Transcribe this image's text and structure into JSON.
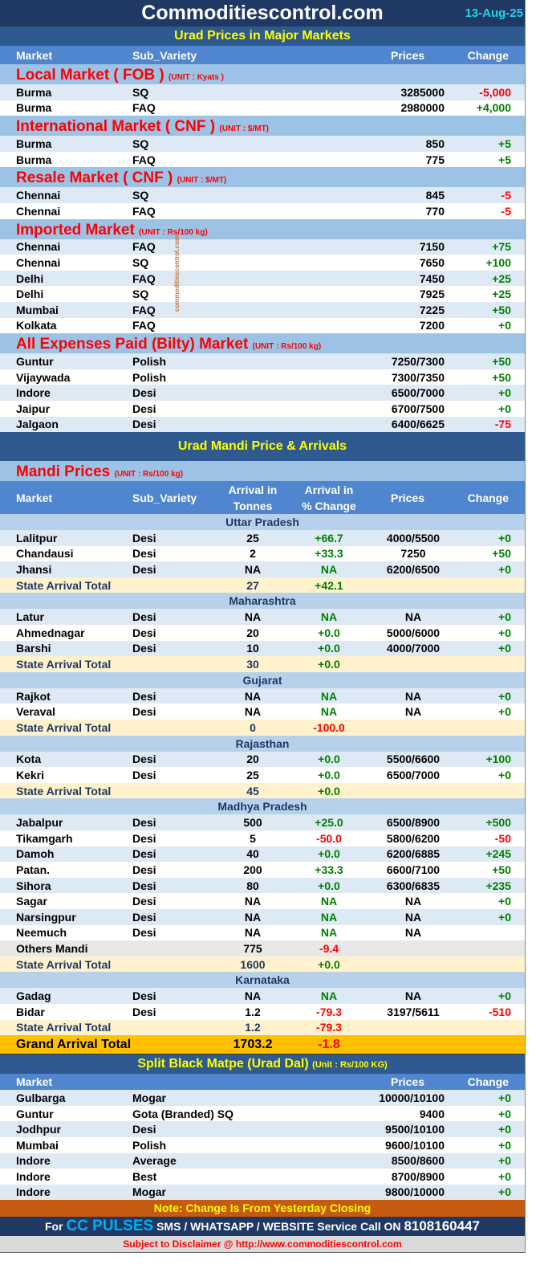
{
  "header": {
    "title": "Commoditiescontrol.com",
    "date": "13-Aug-25",
    "subtitle": "Urad Prices in Major Markets"
  },
  "columns": {
    "market": "Market",
    "sub_variety": "Sub_Variety",
    "prices": "Prices",
    "change": "Change",
    "arrival_tonnes_1": "Arrival in",
    "arrival_tonnes_2": "Tonnes",
    "arrival_pct_1": "Arrival  in",
    "arrival_pct_2": "% Change"
  },
  "watermark": "commoditiescontrol.com",
  "major_sections": [
    {
      "title": "Local Market ( FOB )",
      "unit": "(UNIT : Kyats )",
      "rows": [
        [
          "Burma",
          "SQ",
          "3285000",
          "-5,000"
        ],
        [
          "Burma",
          "FAQ",
          "2980000",
          "+4,000"
        ]
      ]
    },
    {
      "title": "International Market ( CNF )",
      "unit": "(UNIT : $/MT)",
      "rows": [
        [
          "Burma",
          "SQ",
          "850",
          "+5"
        ],
        [
          "Burma",
          "FAQ",
          "775",
          "+5"
        ]
      ]
    },
    {
      "title": "Resale Market  ( CNF )",
      "unit": "(UNIT : $/MT)",
      "rows": [
        [
          "Chennai",
          "SQ",
          "845",
          "-5"
        ],
        [
          "Chennai",
          "FAQ",
          "770",
          "-5"
        ]
      ]
    },
    {
      "title": "Imported Market",
      "unit": "(UNIT : Rs/100 kg)",
      "rows": [
        [
          "Chennai",
          "FAQ",
          "7150",
          "+75"
        ],
        [
          "Chennai",
          "SQ",
          "7650",
          "+100"
        ],
        [
          "Delhi",
          "FAQ",
          "7450",
          "+25"
        ],
        [
          "Delhi",
          "SQ",
          "7925",
          "+25"
        ],
        [
          "Mumbai",
          "FAQ",
          "7225",
          "+50"
        ],
        [
          "Kolkata",
          "FAQ",
          "7200",
          "+0"
        ]
      ]
    },
    {
      "title": "All Expenses Paid (Bilty) Market",
      "unit": "(UNIT : Rs/100 kg)",
      "rows": [
        [
          "Guntur",
          "Polish",
          "7250/7300",
          "+50"
        ],
        [
          "Vijaywada",
          "Polish",
          "7300/7350",
          "+50"
        ],
        [
          "Indore",
          "Desi",
          "6500/7000",
          "+0"
        ],
        [
          "Jaipur",
          "Desi",
          "6700/7500",
          "+0"
        ],
        [
          "Jalgaon",
          "Desi",
          "6400/6625",
          "-75"
        ]
      ]
    }
  ],
  "mandi": {
    "banner": "Urad Mandi Price & Arrivals",
    "title": "Mandi Prices",
    "unit": "(UNIT : Rs/100 kg)",
    "states": [
      {
        "name": "Uttar Pradesh",
        "rows": [
          [
            "Lalitpur",
            "Desi",
            "25",
            "+66.7",
            "4000/5500",
            "+0"
          ],
          [
            "Chandausi",
            "Desi",
            "2",
            "+33.3",
            "7250",
            "+50"
          ],
          [
            "Jhansi",
            "Desi",
            "NA",
            "NA",
            "6200/6500",
            "+0"
          ]
        ],
        "total": [
          "State Arrival Total",
          "27",
          "+42.1"
        ]
      },
      {
        "name": "Maharashtra",
        "rows": [
          [
            "Latur",
            "Desi",
            "NA",
            "NA",
            "NA",
            "+0"
          ],
          [
            "Ahmednagar",
            "Desi",
            "20",
            "+0.0",
            "5000/6000",
            "+0"
          ],
          [
            "Barshi",
            "Desi",
            "10",
            "+0.0",
            "4000/7000",
            "+0"
          ]
        ],
        "total": [
          "State Arrival Total",
          "30",
          "+0.0"
        ]
      },
      {
        "name": "Gujarat",
        "rows": [
          [
            "Rajkot",
            "Desi",
            "NA",
            "NA",
            "NA",
            "+0"
          ],
          [
            "Veraval",
            "Desi",
            "NA",
            "NA",
            "NA",
            "+0"
          ]
        ],
        "total": [
          "State Arrival Total",
          "0",
          "-100.0"
        ]
      },
      {
        "name": "Rajasthan",
        "rows": [
          [
            "Kota",
            "Desi",
            "20",
            "+0.0",
            "5500/6600",
            "+100"
          ],
          [
            "Kekri",
            "Desi",
            "25",
            "+0.0",
            "6500/7000",
            "+0"
          ]
        ],
        "total": [
          "State Arrival Total",
          "45",
          "+0.0"
        ]
      },
      {
        "name": "Madhya Pradesh",
        "rows": [
          [
            "Jabalpur",
            "Desi",
            "500",
            "+25.0",
            "6500/8900",
            "+500"
          ],
          [
            "Tikamgarh",
            "Desi",
            "5",
            "-50.0",
            "5800/6200",
            "-50"
          ],
          [
            "Damoh",
            "Desi",
            "40",
            "+0.0",
            "6200/6885",
            "+245"
          ],
          [
            "Patan.",
            "Desi",
            "200",
            "+33.3",
            "6600/7100",
            "+50"
          ],
          [
            "Sihora",
            "Desi",
            "80",
            "+0.0",
            "6300/6835",
            "+235"
          ],
          [
            "Sagar",
            "Desi",
            "NA",
            "NA",
            "NA",
            "+0"
          ],
          [
            "Narsingpur",
            "Desi",
            "NA",
            "NA",
            "NA",
            "+0"
          ],
          [
            "Neemuch",
            "Desi",
            "NA",
            "NA",
            "NA",
            ""
          ]
        ],
        "others": [
          "Others Mandi",
          "775",
          "-9.4"
        ],
        "total": [
          "State Arrival Total",
          "1600",
          "+0.0"
        ]
      },
      {
        "name": "Karnataka",
        "rows": [
          [
            "Gadag",
            "Desi",
            "NA",
            "NA",
            "NA",
            "+0"
          ],
          [
            "Bidar",
            "Desi",
            "1.2",
            "-79.3",
            "3197/5611",
            "-510"
          ]
        ],
        "total": [
          "State Arrival Total",
          "1.2",
          "-79.3"
        ]
      }
    ],
    "grand_total": [
      "Grand Arrival Total",
      "1703.2",
      "-1.8"
    ]
  },
  "dal": {
    "title": "Split Black Matpe (Urad Dal)",
    "unit": "(Unit : Rs/100 KG)",
    "rows": [
      [
        "Gulbarga",
        "Mogar",
        "10000/10100",
        "+0"
      ],
      [
        "Guntur",
        "Gota (Branded) SQ",
        "9400",
        "+0"
      ],
      [
        "Jodhpur",
        "Desi",
        "9500/10100",
        "+0"
      ],
      [
        "Mumbai",
        "Polish",
        "9600/10100",
        "+0"
      ],
      [
        "Indore",
        "Average",
        "8500/8600",
        "+0"
      ],
      [
        "Indore",
        "Best",
        "8700/8900",
        "+0"
      ],
      [
        "Indore",
        "Mogar",
        "9800/10000",
        "+0"
      ]
    ]
  },
  "footer": {
    "note": "Note: Change Is From Yesterday Closing",
    "call_for": "For",
    "call_brand": "CC PULSES",
    "call_text": "SMS / WHATSAPP / WEBSITE Service Call  ON",
    "call_phone": "8108160447",
    "disclaimer": "Subject to Disclaimer @  http://www.commoditiescontrol.com"
  },
  "colors": {
    "positive": "#008000",
    "negative": "#ff0000",
    "header_bg": "#203864",
    "accent_yellow": "#ffff00"
  }
}
